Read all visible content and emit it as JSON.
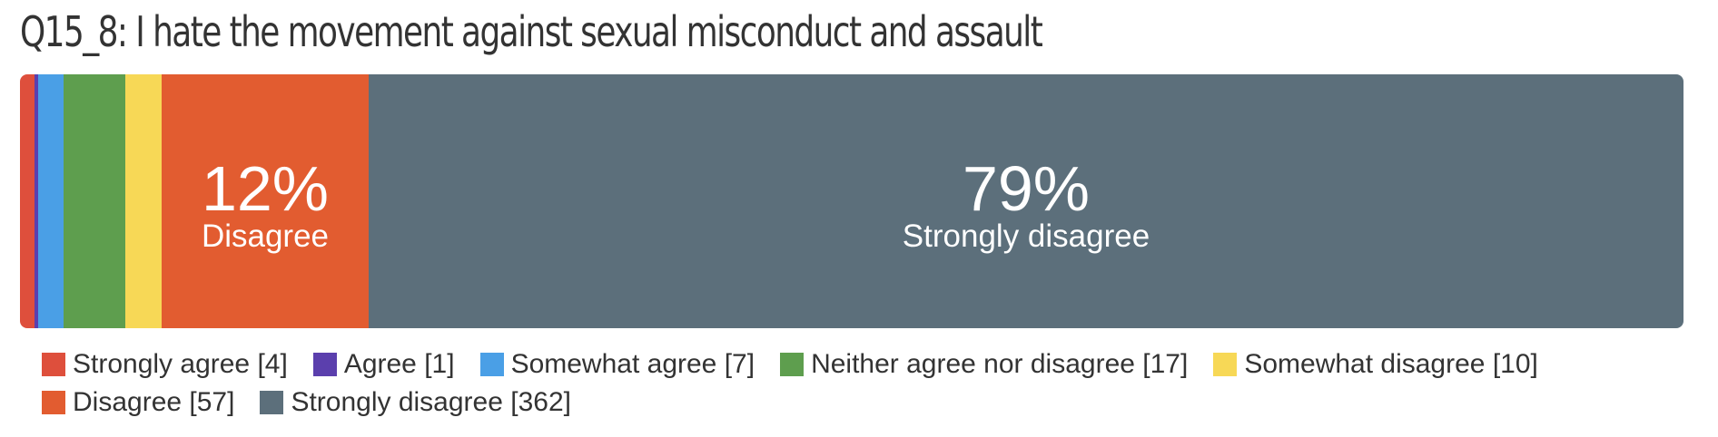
{
  "chart_data": {
    "type": "bar",
    "orientation": "horizontal-stacked",
    "title": "Q15_8: I hate the movement against sexual misconduct and assault",
    "legend_position": "bottom",
    "categories": [
      "Strongly agree",
      "Agree",
      "Somewhat agree",
      "Neither agree nor disagree",
      "Somewhat disagree",
      "Disagree",
      "Strongly disagree"
    ],
    "values": [
      4,
      1,
      7,
      17,
      10,
      57,
      362
    ],
    "colors": [
      "#de4f3c",
      "#5b3fad",
      "#4a9fe6",
      "#5e9e4e",
      "#f7d856",
      "#e25c30",
      "#5c6f7b"
    ],
    "legend_labels": [
      "Strongly agree [4]",
      "Agree [1]",
      "Somewhat agree [7]",
      "Neither agree nor disagree [17]",
      "Somewhat disagree [10]",
      "Disagree [57]",
      "Strongly disagree [362]"
    ],
    "segment_labels": [
      {
        "index": 5,
        "percent": "12%",
        "label": "Disagree"
      },
      {
        "index": 6,
        "percent": "79%",
        "label": "Strongly disagree"
      }
    ]
  }
}
